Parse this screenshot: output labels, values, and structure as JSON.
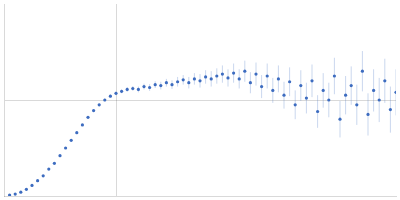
{
  "chart_data": {
    "type": "scatter",
    "color": "#3d6cc0",
    "marker": "circle",
    "grid": true,
    "tick_labels": false,
    "xlim": [
      0,
      3.5
    ],
    "xticks": [
      1
    ],
    "ylim": [
      0,
      2
    ],
    "yticks": [
      1
    ],
    "x": [
      0.05,
      0.1,
      0.15,
      0.2,
      0.25,
      0.3,
      0.35,
      0.4,
      0.45,
      0.5,
      0.55,
      0.6,
      0.65,
      0.7,
      0.75,
      0.8,
      0.85,
      0.9,
      0.95,
      1.0,
      1.05,
      1.1,
      1.15,
      1.2,
      1.25,
      1.3,
      1.35,
      1.4,
      1.45,
      1.5,
      1.55,
      1.6,
      1.65,
      1.7,
      1.75,
      1.8,
      1.85,
      1.9,
      1.95,
      2.0,
      2.05,
      2.1,
      2.15,
      2.2,
      2.25,
      2.3,
      2.35,
      2.4,
      2.45,
      2.5,
      2.55,
      2.6,
      2.65,
      2.7,
      2.75,
      2.8,
      2.85,
      2.9,
      2.95,
      3.0,
      3.05,
      3.1,
      3.15,
      3.2,
      3.25,
      3.3,
      3.35,
      3.4,
      3.45,
      3.5
    ],
    "values": [
      0.01,
      0.02,
      0.04,
      0.07,
      0.11,
      0.16,
      0.21,
      0.28,
      0.34,
      0.42,
      0.5,
      0.58,
      0.66,
      0.74,
      0.82,
      0.89,
      0.95,
      1.0,
      1.04,
      1.07,
      1.09,
      1.11,
      1.12,
      1.11,
      1.14,
      1.13,
      1.16,
      1.15,
      1.18,
      1.16,
      1.19,
      1.21,
      1.18,
      1.22,
      1.2,
      1.24,
      1.22,
      1.25,
      1.27,
      1.23,
      1.28,
      1.22,
      1.3,
      1.18,
      1.27,
      1.14,
      1.25,
      1.1,
      1.22,
      1.05,
      1.19,
      0.95,
      1.15,
      1.02,
      1.2,
      0.88,
      1.1,
      1.0,
      1.25,
      0.8,
      1.05,
      1.15,
      0.95,
      1.3,
      0.85,
      1.1,
      1.0,
      1.2,
      0.9,
      1.08
    ],
    "errors": [
      0.005,
      0.005,
      0.005,
      0.005,
      0.006,
      0.006,
      0.007,
      0.007,
      0.008,
      0.008,
      0.009,
      0.009,
      0.01,
      0.01,
      0.012,
      0.012,
      0.014,
      0.015,
      0.017,
      0.02,
      0.02,
      0.025,
      0.025,
      0.03,
      0.03,
      0.035,
      0.035,
      0.04,
      0.04,
      0.045,
      0.05,
      0.05,
      0.06,
      0.06,
      0.07,
      0.07,
      0.08,
      0.08,
      0.09,
      0.09,
      0.1,
      0.1,
      0.11,
      0.11,
      0.12,
      0.12,
      0.13,
      0.13,
      0.14,
      0.14,
      0.15,
      0.15,
      0.16,
      0.16,
      0.17,
      0.17,
      0.18,
      0.18,
      0.19,
      0.19,
      0.2,
      0.2,
      0.21,
      0.21,
      0.22,
      0.22,
      0.23,
      0.23,
      0.24,
      0.24
    ]
  }
}
